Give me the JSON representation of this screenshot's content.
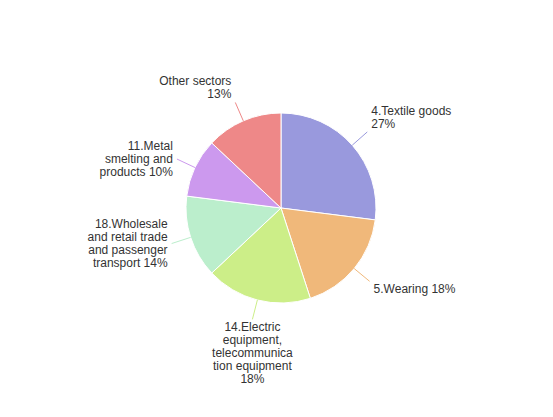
{
  "chart_data": {
    "type": "pie",
    "categories": [
      "4.Textile goods\n27%",
      "5.Wearing 18%",
      "14.Electric\nequipment,\ntelecommunica\ntion equipment\n18%",
      "18.Wholesale\nand retail trade\nand passenger\ntransport 14%",
      "11.Metal\nsmelting and\nproducts 10%",
      "Other sectors\n13%"
    ],
    "values": [
      27,
      18,
      18,
      14,
      10,
      13
    ],
    "colors": [
      "#9999dd",
      "#f0b87a",
      "#ccee88",
      "#bbeecc",
      "#cc99ee",
      "#ee8888"
    ]
  }
}
